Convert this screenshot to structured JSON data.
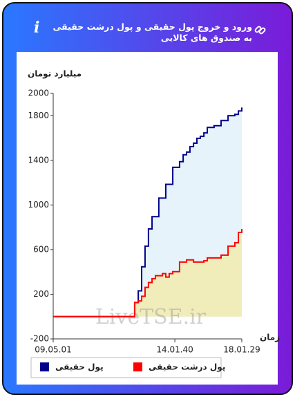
{
  "header": {
    "title": "ورود و خروج پول حقیقی و پول درشت حقیقی به صندوق های کالایی"
  },
  "chart_data": {
    "type": "line",
    "step": true,
    "area": true,
    "ylabel": "میلیارد تومان",
    "xlabel": "زمان",
    "watermark": "LiveTSE.ir",
    "x": [
      0,
      41.4,
      43.2,
      45.1,
      46.9,
      48.7,
      50.5,
      52.4,
      54.2,
      56.0,
      57.9,
      59.7,
      61.5,
      63.4,
      65.2,
      67.0,
      68.9,
      70.7,
      72.5,
      74.4,
      76.2,
      78.0,
      79.9,
      81.7,
      85.3,
      89.0,
      92.7,
      96.3,
      98.2,
      100
    ],
    "series": [
      {
        "name": "پول حقیقی",
        "color": "#00008b",
        "area_color": "#e6f3fb",
        "values": [
          0,
          0,
          126,
          231,
          446,
          631,
          785,
          895,
          895,
          1062,
          1062,
          1185,
          1185,
          1338,
          1338,
          1388,
          1450,
          1474,
          1523,
          1554,
          1597,
          1615,
          1646,
          1695,
          1710,
          1757,
          1800,
          1812,
          1843,
          1874
        ]
      },
      {
        "name": "پول درشت حقیقی",
        "color": "#ff0000",
        "area_color": "#f1edbb",
        "values": [
          0,
          0,
          126,
          140,
          182,
          262,
          305,
          340,
          366,
          366,
          385,
          354,
          385,
          403,
          403,
          489,
          489,
          508,
          508,
          489,
          489,
          489,
          500,
          526,
          526,
          551,
          631,
          662,
          754,
          785
        ]
      }
    ],
    "xlim": [
      0,
      100
    ],
    "xticks": [
      {
        "value": 0,
        "label": "09.05.01"
      },
      {
        "value": 64.5,
        "label": "14.01.40"
      },
      {
        "value": 100,
        "label": "18.01.29"
      }
    ],
    "ylim": [
      -200,
      2000
    ],
    "yticks": [
      -200,
      200,
      600,
      1000,
      1400,
      1800,
      2000
    ]
  }
}
